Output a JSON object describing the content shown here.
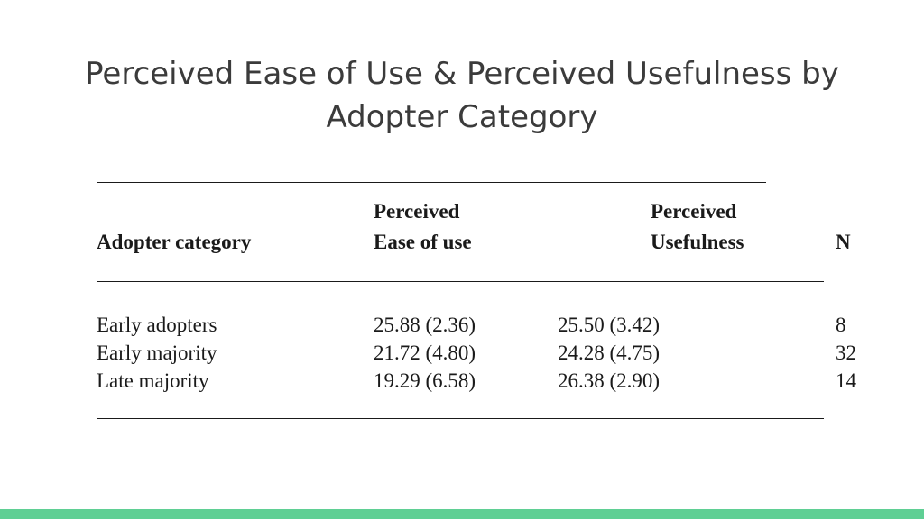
{
  "slide": {
    "title_line1": "Perceived Ease of Use & Perceived Usefulness by",
    "title_line2": "Adopter Category",
    "accent_color": "#5fcf94"
  },
  "table": {
    "headers": {
      "category": "Adopter category",
      "peou_line1": "Perceived",
      "peou_line2": "Ease of use",
      "pu_line1": "Perceived",
      "pu_line2": "Usefulness",
      "n": "N"
    },
    "rows": [
      {
        "category": "Early adopters",
        "peou": "25.88 (2.36)",
        "pu": "25.50 (3.42)",
        "n": "8"
      },
      {
        "category": "Early majority",
        "peou": "21.72 (4.80)",
        "pu": "24.28 (4.75)",
        "n": "32"
      },
      {
        "category": "Late majority",
        "peou": "19.29 (6.58)",
        "pu": "26.38 (2.90)",
        "n": "14"
      }
    ]
  }
}
